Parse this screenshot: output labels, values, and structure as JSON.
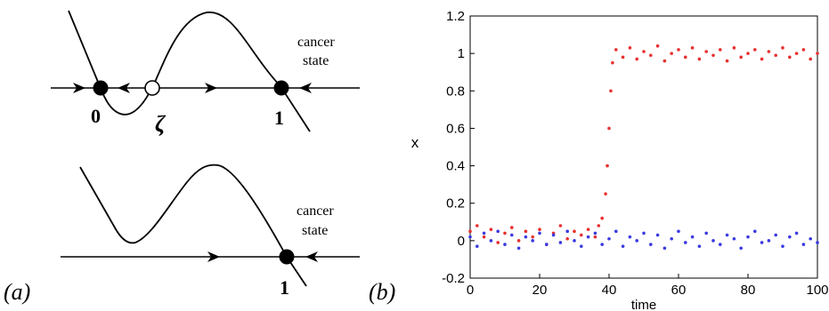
{
  "panel_a": {
    "label": "(a)",
    "top": {
      "fixed_points": [
        {
          "label": "0",
          "type": "stable"
        },
        {
          "label": "ζ",
          "type": "unstable"
        },
        {
          "label": "1",
          "type": "stable"
        }
      ],
      "annotation": [
        "cancer",
        "state"
      ]
    },
    "bottom": {
      "fixed_points": [
        {
          "label": "1",
          "type": "stable"
        }
      ],
      "annotation": [
        "cancer",
        "state"
      ]
    }
  },
  "panel_b": {
    "label": "(b)"
  },
  "chart_data": {
    "type": "scatter",
    "xlabel": "time",
    "ylabel": "x",
    "xlim": [
      0,
      100
    ],
    "ylim": [
      -0.2,
      1.2
    ],
    "x_ticks": [
      0,
      20,
      40,
      60,
      80,
      100
    ],
    "y_ticks": [
      -0.2,
      0,
      0.2,
      0.4,
      0.6,
      0.8,
      1,
      1.2
    ],
    "y_tick_labels": [
      "-0.2",
      "0",
      "0.2",
      "0.4",
      "0.6",
      "0.8",
      "1",
      "1.2"
    ],
    "grid": false,
    "series": [
      {
        "color": "#e83030",
        "points": [
          [
            0,
            0.05
          ],
          [
            2,
            0.08
          ],
          [
            4,
            0.02
          ],
          [
            6,
            0.06
          ],
          [
            8,
            -0.01
          ],
          [
            10,
            0.04
          ],
          [
            12,
            0.07
          ],
          [
            14,
            0.0
          ],
          [
            16,
            0.05
          ],
          [
            18,
            0.02
          ],
          [
            20,
            0.06
          ],
          [
            22,
            -0.02
          ],
          [
            24,
            0.04
          ],
          [
            26,
            0.08
          ],
          [
            28,
            0.01
          ],
          [
            30,
            0.05
          ],
          [
            32,
            0.03
          ],
          [
            34,
            0.06
          ],
          [
            36,
            0.02
          ],
          [
            37,
            0.08
          ],
          [
            38,
            0.12
          ],
          [
            39,
            0.25
          ],
          [
            39.5,
            0.4
          ],
          [
            40,
            0.6
          ],
          [
            40.5,
            0.8
          ],
          [
            41,
            0.95
          ],
          [
            42,
            1.02
          ],
          [
            44,
            0.98
          ],
          [
            46,
            1.03
          ],
          [
            48,
            0.97
          ],
          [
            50,
            1.01
          ],
          [
            52,
            0.99
          ],
          [
            54,
            1.04
          ],
          [
            56,
            0.96
          ],
          [
            58,
            1.0
          ],
          [
            60,
            1.02
          ],
          [
            62,
            0.98
          ],
          [
            64,
            1.03
          ],
          [
            66,
            0.97
          ],
          [
            68,
            1.01
          ],
          [
            70,
            0.99
          ],
          [
            72,
            1.02
          ],
          [
            74,
            0.96
          ],
          [
            76,
            1.03
          ],
          [
            78,
            0.98
          ],
          [
            80,
            1.0
          ],
          [
            82,
            1.02
          ],
          [
            84,
            0.97
          ],
          [
            86,
            1.01
          ],
          [
            88,
            0.99
          ],
          [
            90,
            1.03
          ],
          [
            92,
            0.98
          ],
          [
            94,
            1.0
          ],
          [
            96,
            1.02
          ],
          [
            98,
            0.97
          ],
          [
            100,
            1.0
          ]
        ]
      },
      {
        "color": "#3a3ae0",
        "points": [
          [
            0,
            0.02
          ],
          [
            2,
            -0.03
          ],
          [
            4,
            0.04
          ],
          [
            6,
            0.0
          ],
          [
            8,
            0.05
          ],
          [
            10,
            -0.02
          ],
          [
            12,
            0.03
          ],
          [
            14,
            -0.04
          ],
          [
            16,
            0.02
          ],
          [
            18,
            0.0
          ],
          [
            20,
            0.04
          ],
          [
            22,
            -0.02
          ],
          [
            24,
            0.03
          ],
          [
            26,
            -0.01
          ],
          [
            28,
            0.05
          ],
          [
            30,
            0.0
          ],
          [
            32,
            -0.03
          ],
          [
            34,
            0.02
          ],
          [
            36,
            0.04
          ],
          [
            38,
            -0.02
          ],
          [
            40,
            0.01
          ],
          [
            42,
            0.05
          ],
          [
            44,
            -0.03
          ],
          [
            46,
            0.02
          ],
          [
            48,
            0.0
          ],
          [
            50,
            0.04
          ],
          [
            52,
            -0.02
          ],
          [
            54,
            0.03
          ],
          [
            56,
            -0.04
          ],
          [
            58,
            0.01
          ],
          [
            60,
            0.05
          ],
          [
            62,
            -0.01
          ],
          [
            64,
            0.02
          ],
          [
            66,
            -0.03
          ],
          [
            68,
            0.04
          ],
          [
            70,
            0.0
          ],
          [
            72,
            -0.02
          ],
          [
            74,
            0.03
          ],
          [
            76,
            0.01
          ],
          [
            78,
            -0.04
          ],
          [
            80,
            0.02
          ],
          [
            82,
            0.05
          ],
          [
            84,
            -0.01
          ],
          [
            86,
            0.0
          ],
          [
            88,
            0.03
          ],
          [
            90,
            -0.03
          ],
          [
            92,
            0.02
          ],
          [
            94,
            0.04
          ],
          [
            96,
            -0.02
          ],
          [
            98,
            0.01
          ],
          [
            100,
            -0.01
          ]
        ]
      }
    ]
  }
}
